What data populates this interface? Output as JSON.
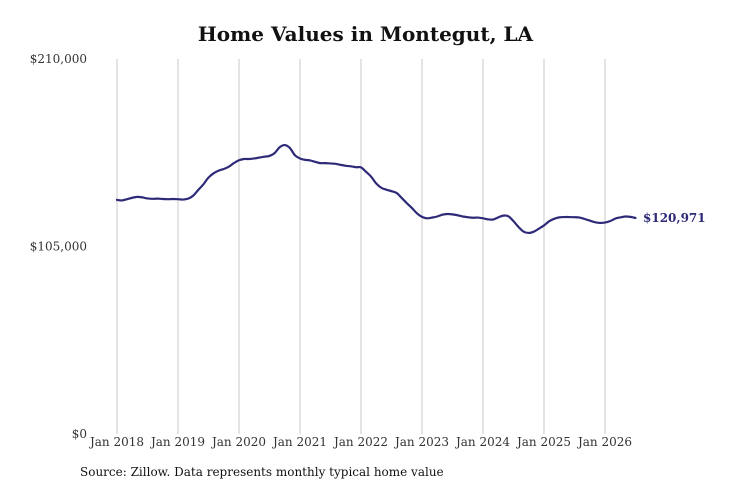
{
  "chart_data": {
    "type": "line",
    "title": "Home Values in Montegut, LA",
    "xlabel": "",
    "ylabel": "",
    "ylim": [
      0,
      210000
    ],
    "y_ticks": [
      {
        "value": 0,
        "label": "$0"
      },
      {
        "value": 105000,
        "label": "$105,000"
      },
      {
        "value": 210000,
        "label": "$210,000"
      }
    ],
    "x_ticks": [
      {
        "value": "2018-01",
        "label": "Jan 2018"
      },
      {
        "value": "2019-01",
        "label": "Jan 2019"
      },
      {
        "value": "2020-01",
        "label": "Jan 2020"
      },
      {
        "value": "2021-01",
        "label": "Jan 2021"
      },
      {
        "value": "2022-01",
        "label": "Jan 2022"
      },
      {
        "value": "2023-01",
        "label": "Jan 2023"
      },
      {
        "value": "2024-01",
        "label": "Jan 2024"
      },
      {
        "value": "2025-01",
        "label": "Jan 2025"
      },
      {
        "value": "2026-01",
        "label": "Jan 2026"
      }
    ],
    "xlim": [
      "2018-01",
      "2026-06"
    ],
    "grid": {
      "vertical": true,
      "horizontal": false
    },
    "series": [
      {
        "color": "#2e2a78",
        "end_label": "$120,971",
        "points": [
          [
            "2018-01",
            131100
          ],
          [
            "2018-02",
            130800
          ],
          [
            "2018-03",
            131500
          ],
          [
            "2018-04",
            132300
          ],
          [
            "2018-05",
            132800
          ],
          [
            "2018-06",
            132500
          ],
          [
            "2018-07",
            131900
          ],
          [
            "2018-08",
            131700
          ],
          [
            "2018-09",
            131800
          ],
          [
            "2018-10",
            131600
          ],
          [
            "2018-11",
            131500
          ],
          [
            "2018-12",
            131600
          ],
          [
            "2019-01",
            131500
          ],
          [
            "2019-02",
            131300
          ],
          [
            "2019-03",
            131800
          ],
          [
            "2019-04",
            133500
          ],
          [
            "2019-05",
            136700
          ],
          [
            "2019-06",
            139800
          ],
          [
            "2019-07",
            143600
          ],
          [
            "2019-08",
            146000
          ],
          [
            "2019-09",
            147500
          ],
          [
            "2019-10",
            148400
          ],
          [
            "2019-11",
            149700
          ],
          [
            "2019-12",
            151700
          ],
          [
            "2020-01",
            153300
          ],
          [
            "2020-02",
            154000
          ],
          [
            "2020-03",
            154000
          ],
          [
            "2020-04",
            154300
          ],
          [
            "2020-05",
            154800
          ],
          [
            "2020-06",
            155300
          ],
          [
            "2020-07",
            155700
          ],
          [
            "2020-08",
            157300
          ],
          [
            "2020-09",
            160600
          ],
          [
            "2020-10",
            161800
          ],
          [
            "2020-11",
            160200
          ],
          [
            "2020-12",
            156100
          ],
          [
            "2021-01",
            154300
          ],
          [
            "2021-02",
            153500
          ],
          [
            "2021-03",
            153200
          ],
          [
            "2021-04",
            152400
          ],
          [
            "2021-05",
            151700
          ],
          [
            "2021-06",
            151700
          ],
          [
            "2021-07",
            151500
          ],
          [
            "2021-08",
            151300
          ],
          [
            "2021-09",
            150700
          ],
          [
            "2021-10",
            150200
          ],
          [
            "2021-11",
            149900
          ],
          [
            "2021-12",
            149400
          ],
          [
            "2022-01",
            149300
          ],
          [
            "2022-02",
            146800
          ],
          [
            "2022-03",
            144100
          ],
          [
            "2022-04",
            140300
          ],
          [
            "2022-05",
            137900
          ],
          [
            "2022-06",
            136800
          ],
          [
            "2022-07",
            136000
          ],
          [
            "2022-08",
            135000
          ],
          [
            "2022-09",
            132200
          ],
          [
            "2022-10",
            129300
          ],
          [
            "2022-11",
            126600
          ],
          [
            "2022-12",
            123600
          ],
          [
            "2023-01",
            121600
          ],
          [
            "2023-02",
            120800
          ],
          [
            "2023-03",
            121200
          ],
          [
            "2023-04",
            121800
          ],
          [
            "2023-05",
            122800
          ],
          [
            "2023-06",
            123200
          ],
          [
            "2023-07",
            123000
          ],
          [
            "2023-08",
            122500
          ],
          [
            "2023-09",
            121800
          ],
          [
            "2023-10",
            121400
          ],
          [
            "2023-11",
            121100
          ],
          [
            "2023-12",
            121200
          ],
          [
            "2024-01",
            120800
          ],
          [
            "2024-02",
            120200
          ],
          [
            "2024-03",
            120100
          ],
          [
            "2024-04",
            121300
          ],
          [
            "2024-05",
            122300
          ],
          [
            "2024-06",
            121900
          ],
          [
            "2024-07",
            119200
          ],
          [
            "2024-08",
            115900
          ],
          [
            "2024-09",
            113300
          ],
          [
            "2024-10",
            112600
          ],
          [
            "2024-11",
            113300
          ],
          [
            "2024-12",
            115000
          ],
          [
            "2025-01",
            116800
          ],
          [
            "2025-02",
            119100
          ],
          [
            "2025-03",
            120500
          ],
          [
            "2025-04",
            121300
          ],
          [
            "2025-05",
            121500
          ],
          [
            "2025-06",
            121500
          ],
          [
            "2025-07",
            121400
          ],
          [
            "2025-08",
            121200
          ],
          [
            "2025-09",
            120400
          ],
          [
            "2025-10",
            119500
          ],
          [
            "2025-11",
            118600
          ],
          [
            "2025-12",
            118200
          ],
          [
            "2026-01",
            118400
          ],
          [
            "2026-02",
            119200
          ],
          [
            "2026-03",
            120600
          ],
          [
            "2026-04",
            121300
          ],
          [
            "2026-05",
            121800
          ],
          [
            "2026-06",
            121600
          ],
          [
            "2026-07",
            120971
          ]
        ]
      }
    ]
  },
  "footer": {
    "source": "Source: Zillow. Data represents monthly typical home value"
  }
}
